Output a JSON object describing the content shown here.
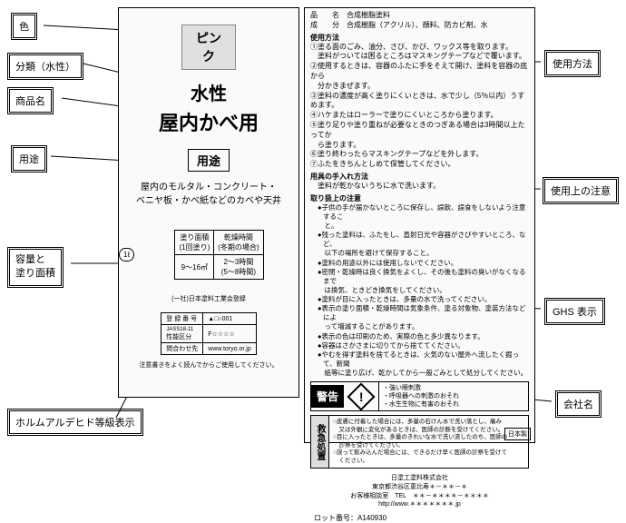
{
  "callouts": {
    "color": "色",
    "category": "分類（水性）",
    "productName": "商品名",
    "usage": "用途",
    "capacity1": "容量と",
    "capacity2": "塗り面積",
    "formaldehyde": "ホルムアルデヒド等級表示",
    "howto": "使用方法",
    "precautions": "使用上の注意",
    "ghs": "GHS 表示",
    "company": "会社名"
  },
  "left": {
    "colorName": "ピンク",
    "title1": "水性",
    "title2": "屋内かべ用",
    "usageLabel": "用途",
    "desc1": "屋内のモルタル・コンクリート・",
    "desc2": "ベニヤ板・かべ紙などのカベや天井",
    "specTable": {
      "h1": "塗り面積",
      "h1b": "(1回塗り)",
      "h2": "乾燥時間",
      "h2b": "(冬期の場合)",
      "v1": "9～16㎡",
      "v2": "2～3時間",
      "v2b": "(5～8時間)"
    },
    "pointLabel": "1ℓ",
    "regTitle": "(一社)日本塗料工業会登録",
    "reg": {
      "r1a": "登 録 番 号",
      "r1b": "▲□○001",
      "r2a": "JASS18-11",
      "r2b": "F☆☆☆☆",
      "r3a": "性能区分",
      "r4a": "問合わせ先",
      "r4b": "www.toryo.or.jp"
    },
    "bottomNote": "注意書きをよく読んでからご使用してください。"
  },
  "right": {
    "hinmei_l": "品　　名",
    "hinmei_v": "合成樹脂塗料",
    "seibun_l": "成　　分",
    "seibun_v": "合成樹脂（アクリル）、顔料、防カビ剤、水",
    "howtoHead": "使用方法",
    "howto": [
      "①塗る面のごみ、油分、さび、かび、ワックス等を取ります。",
      "　塗料がついては困るところはマスキングテープなどで覆います。",
      "②使用するときは、容器のふたに手をそえて開け、塗料を容器の底から",
      "　分かきまぜます。",
      "③塗料の濃度が高く塗りにくいときは、水で少し（5％以内）うすめます。",
      "④ハケまたはローラーで塗りにくいところから塗ります。",
      "⑤塗り足りや塗り重ねが必要なときのつぎある場合は3時間以上たってか",
      "　ら塗ります。",
      "⑥塗り終わったらマスキングテープなどを外します。",
      "⑦ふたをきちんとしめて保管してください。"
    ],
    "toolHead": "用具の手入れ方法",
    "toolLine": "　塗料が乾かないうちに水で洗います。",
    "careHead": "取り扱上の注意",
    "care": [
      "●子供の手が届かないところに保存し、誤飲、誤食をしないよう注意するこ",
      "　と。",
      "●残った塗料は、ふたをし、直射日光や容器がさびやすいところ、など、",
      "　以下の場所を避けて保存すること。",
      "●塗料の用途以外には使用しないでください。",
      "●密閉・乾燥時は良く換気をよくし、その後も塗料の臭いがなくなるまで",
      "　は換気、ときどき換気をしてください。",
      "●塗料が目に入ったときは、多量の水で洗ってください。",
      "●表示の塗り面積・乾燥時間は気象条件、塗る対象物、塗装方法などによ",
      "　って増減することがあります。",
      "●表示の色は印刷のため、実際の色と多少異なります。",
      "●容器はさかさまに切りてから捨ててください。",
      "●やむを得ず塗料を捨てるときは、火気のない屋外へ流したく掘って、新聞",
      "　紙等に塗り広げ、乾かしてから一般ごみとして処分してください。"
    ],
    "warnLabel": "警告",
    "warnMark": "!",
    "warnLines": [
      "・強い眼刺激",
      "・呼吸器への刺激のおそれ",
      "・水生生物に有害のおそれ"
    ],
    "aidLabel": "救急処置",
    "aidLines": [
      "○皮膚に付着した場合には、多量の石けん水で洗い落とし、痛み",
      "　又は外観に変化があるときは、医師の診断を受けてください。",
      "○目に入ったときは、多量のきれいな水で洗い流したのち、医師の",
      "　診察を受けてください。",
      "○誤って飲み込んだ場合には、できるだけ早く医師の診察を受けて",
      "　ください。"
    ],
    "companyName": "日塗工塗料株式会社",
    "companyAddr": "東京都渋谷区恵比寿＊－＊＊－＊",
    "companyTel": "お客様相談室　TEL　＊＊－＊＊＊＊－＊＊＊＊",
    "companyUrl": "http://www.＊＊＊＊＊＊＊.jp",
    "lot": "ロット番号：A140930",
    "made": "日本製"
  },
  "colors": {
    "panel": "#fafafa",
    "gray": "#e0e0e0"
  }
}
